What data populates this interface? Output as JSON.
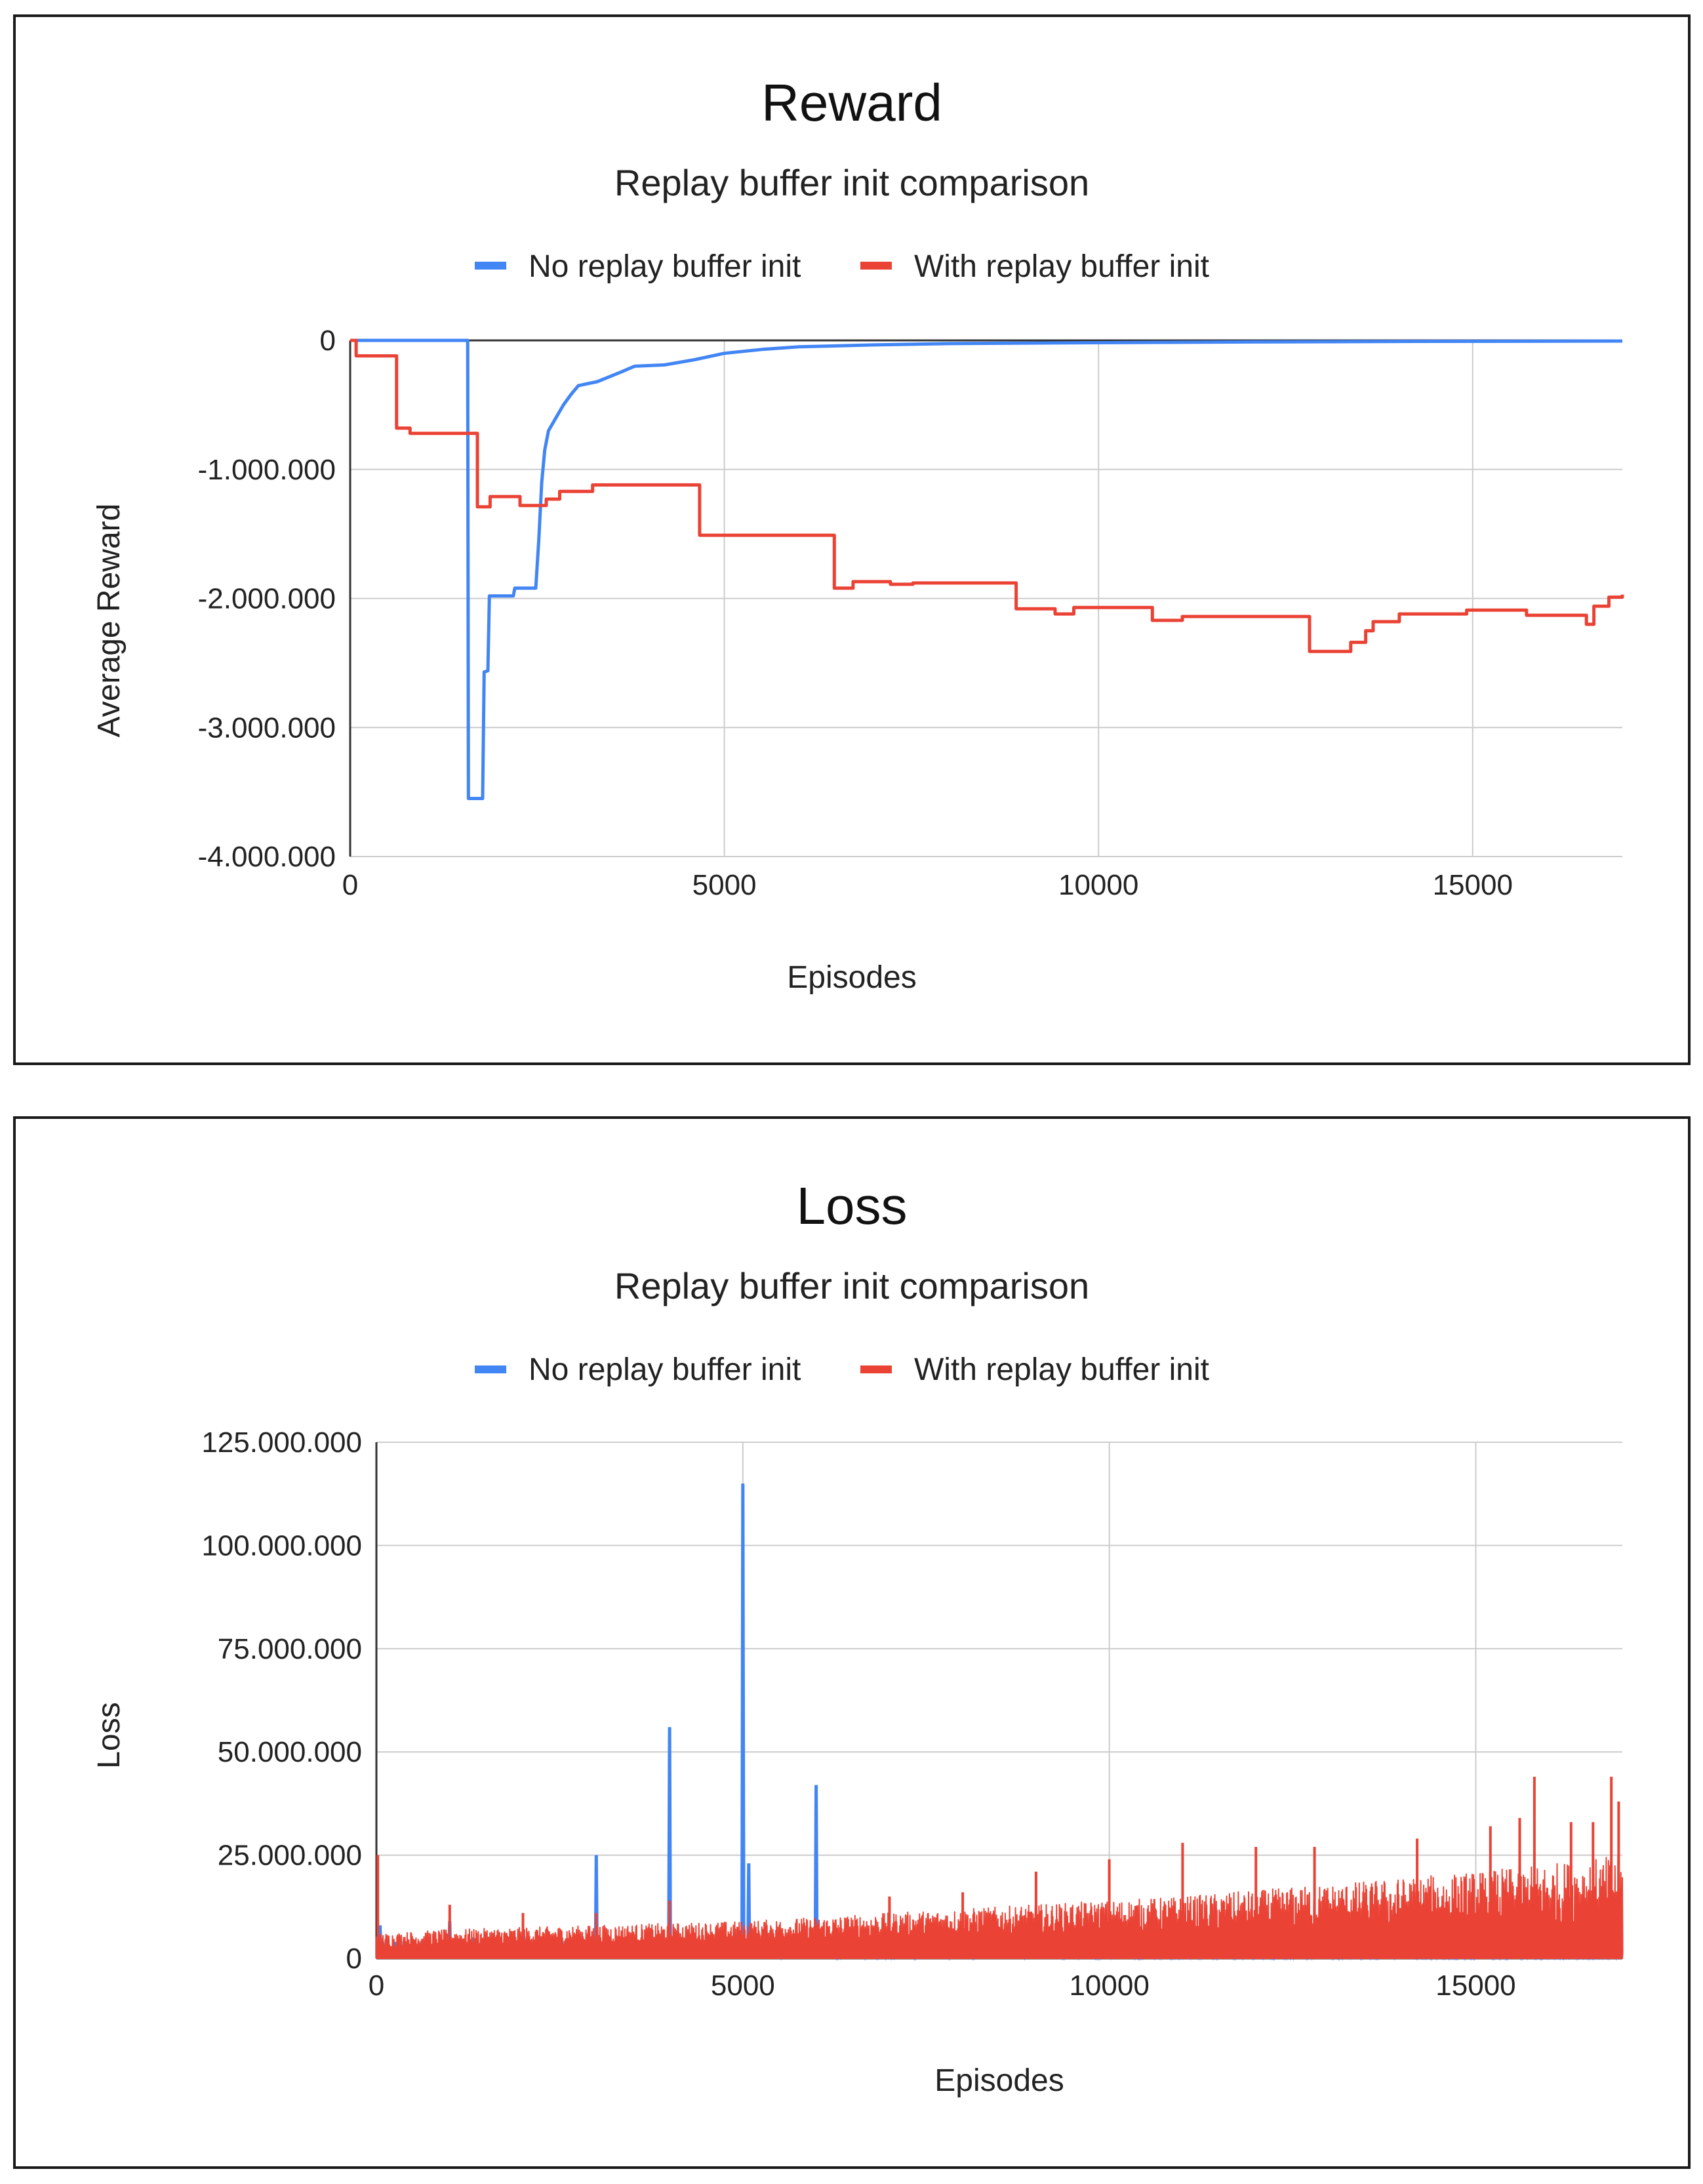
{
  "colors": {
    "no_init": "#4285f4",
    "with_init": "#ea4335",
    "grid": "#cccccc",
    "axis": "#333333"
  },
  "chart_data": [
    {
      "id": "reward",
      "type": "line",
      "title": "Reward",
      "subtitle": "Replay buffer init comparison",
      "xlabel": "Episodes",
      "ylabel": "Average Reward",
      "xlim": [
        0,
        17000
      ],
      "ylim": [
        -4000000,
        0
      ],
      "xticks": [
        0,
        5000,
        10000,
        15000
      ],
      "xtick_labels": [
        "0",
        "5000",
        "10000",
        "15000"
      ],
      "yticks": [
        0,
        -1000000,
        -2000000,
        -3000000,
        -4000000
      ],
      "ytick_labels": [
        "0",
        "-1.000.000",
        "-2.000.000",
        "-3.000.000",
        "-4.000.000"
      ],
      "legend": [
        "No replay buffer init",
        "With replay buffer init"
      ],
      "legend_position": "top",
      "grid": true,
      "series": [
        {
          "name": "No replay buffer init",
          "step": false,
          "points": [
            [
              0,
              0
            ],
            [
              1570,
              0
            ],
            [
              1580,
              -3550000
            ],
            [
              1770,
              -3550000
            ],
            [
              1790,
              -2570000
            ],
            [
              1840,
              -2560000
            ],
            [
              1860,
              -1980000
            ],
            [
              2180,
              -1980000
            ],
            [
              2200,
              -1920000
            ],
            [
              2480,
              -1920000
            ],
            [
              2520,
              -1550000
            ],
            [
              2560,
              -1100000
            ],
            [
              2600,
              -850000
            ],
            [
              2650,
              -700000
            ],
            [
              2750,
              -600000
            ],
            [
              2850,
              -500000
            ],
            [
              2950,
              -420000
            ],
            [
              3050,
              -350000
            ],
            [
              3300,
              -320000
            ],
            [
              3600,
              -250000
            ],
            [
              3800,
              -200000
            ],
            [
              4200,
              -190000
            ],
            [
              4600,
              -150000
            ],
            [
              5000,
              -100000
            ],
            [
              5500,
              -70000
            ],
            [
              6000,
              -50000
            ],
            [
              7000,
              -35000
            ],
            [
              8000,
              -25000
            ],
            [
              10000,
              -18000
            ],
            [
              12000,
              -12000
            ],
            [
              14000,
              -8000
            ],
            [
              17000,
              -5000
            ]
          ]
        },
        {
          "name": "With replay buffer init",
          "step": true,
          "points": [
            [
              0,
              0
            ],
            [
              80,
              -120000
            ],
            [
              600,
              -120000
            ],
            [
              620,
              -680000
            ],
            [
              780,
              -680000
            ],
            [
              800,
              -720000
            ],
            [
              1670,
              -720000
            ],
            [
              1700,
              -1290000
            ],
            [
              1850,
              -1290000
            ],
            [
              1870,
              -1210000
            ],
            [
              2250,
              -1210000
            ],
            [
              2270,
              -1280000
            ],
            [
              2600,
              -1280000
            ],
            [
              2620,
              -1230000
            ],
            [
              2780,
              -1230000
            ],
            [
              2800,
              -1170000
            ],
            [
              3220,
              -1170000
            ],
            [
              3240,
              -1120000
            ],
            [
              4650,
              -1120000
            ],
            [
              4670,
              -1510000
            ],
            [
              6450,
              -1510000
            ],
            [
              6470,
              -1920000
            ],
            [
              6700,
              -1920000
            ],
            [
              6720,
              -1870000
            ],
            [
              7200,
              -1870000
            ],
            [
              7220,
              -1890000
            ],
            [
              7500,
              -1890000
            ],
            [
              7520,
              -1880000
            ],
            [
              8880,
              -1880000
            ],
            [
              8900,
              -2080000
            ],
            [
              9400,
              -2080000
            ],
            [
              9420,
              -2120000
            ],
            [
              9650,
              -2120000
            ],
            [
              9670,
              -2070000
            ],
            [
              10700,
              -2070000
            ],
            [
              10720,
              -2170000
            ],
            [
              11100,
              -2170000
            ],
            [
              11120,
              -2140000
            ],
            [
              12800,
              -2140000
            ],
            [
              12820,
              -2410000
            ],
            [
              13350,
              -2410000
            ],
            [
              13370,
              -2340000
            ],
            [
              13550,
              -2340000
            ],
            [
              13570,
              -2250000
            ],
            [
              13650,
              -2250000
            ],
            [
              13670,
              -2180000
            ],
            [
              14000,
              -2180000
            ],
            [
              14020,
              -2120000
            ],
            [
              14900,
              -2120000
            ],
            [
              14920,
              -2090000
            ],
            [
              15700,
              -2090000
            ],
            [
              15720,
              -2130000
            ],
            [
              16500,
              -2130000
            ],
            [
              16520,
              -2200000
            ],
            [
              16600,
              -2200000
            ],
            [
              16620,
              -2060000
            ],
            [
              16800,
              -2060000
            ],
            [
              16820,
              -1990000
            ],
            [
              17000,
              -1970000
            ]
          ]
        }
      ]
    },
    {
      "id": "loss",
      "type": "line",
      "title": "Loss",
      "subtitle": "Replay buffer init comparison",
      "xlabel": "Episodes",
      "ylabel": "Loss",
      "xlim": [
        0,
        17000
      ],
      "ylim": [
        0,
        125000000
      ],
      "xticks": [
        0,
        5000,
        10000,
        15000
      ],
      "xtick_labels": [
        "0",
        "5000",
        "10000",
        "15000"
      ],
      "yticks": [
        0,
        25000000,
        50000000,
        75000000,
        100000000,
        125000000
      ],
      "ytick_labels": [
        "0",
        "25.000.000",
        "50.000.000",
        "75.000.000",
        "100.000.000",
        "125.000.000"
      ],
      "legend": [
        "No replay buffer init",
        "With replay buffer init"
      ],
      "legend_position": "top",
      "grid": true,
      "series": [
        {
          "name": "No replay buffer init",
          "base": [
            [
              0,
              4000000
            ],
            [
              2000,
              5000000
            ],
            [
              4000,
              3000000
            ],
            [
              6000,
              1500000
            ],
            [
              17000,
              1000000
            ]
          ],
          "spikes": [
            [
              50,
              8000000
            ],
            [
              1000,
              9000000
            ],
            [
              3000,
              25000000
            ],
            [
              4000,
              56000000
            ],
            [
              5000,
              115000000
            ],
            [
              5080,
              23000000
            ],
            [
              6000,
              42000000
            ]
          ]
        },
        {
          "name": "With replay buffer init",
          "envelope": [
            [
              0,
              2500000,
              6000000
            ],
            [
              1000,
              3000000,
              7000000
            ],
            [
              3000,
              3500000,
              8000000
            ],
            [
              5000,
              4000000,
              9000000
            ],
            [
              7000,
              5000000,
              11000000
            ],
            [
              9000,
              6000000,
              13000000
            ],
            [
              11000,
              6500000,
              15000000
            ],
            [
              13000,
              7000000,
              18000000
            ],
            [
              15000,
              7500000,
              21000000
            ],
            [
              17000,
              8000000,
              25000000
            ]
          ],
          "spikes": [
            [
              20,
              25000000
            ],
            [
              1000,
              13000000
            ],
            [
              2000,
              11000000
            ],
            [
              3000,
              11000000
            ],
            [
              4000,
              14000000
            ],
            [
              7000,
              15000000
            ],
            [
              8000,
              16000000
            ],
            [
              9000,
              21000000
            ],
            [
              10000,
              24000000
            ],
            [
              11000,
              28000000
            ],
            [
              12000,
              27000000
            ],
            [
              12800,
              27000000
            ],
            [
              14200,
              29000000
            ],
            [
              15200,
              32000000
            ],
            [
              15600,
              34000000
            ],
            [
              15800,
              44000000
            ],
            [
              16300,
              33000000
            ],
            [
              16600,
              33000000
            ],
            [
              16850,
              44000000
            ],
            [
              16950,
              38000000
            ]
          ]
        }
      ]
    }
  ]
}
